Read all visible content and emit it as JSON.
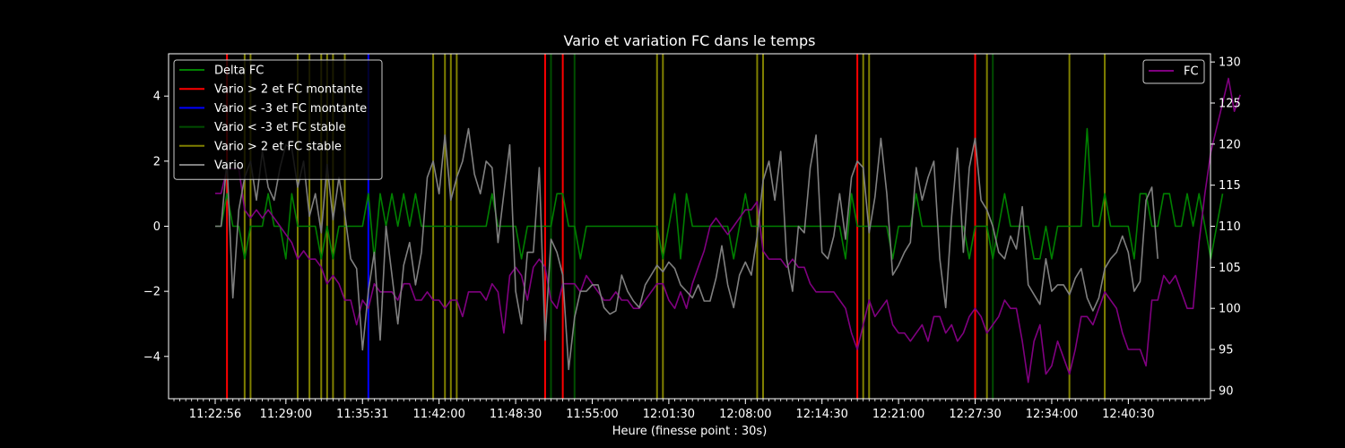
{
  "chart_data": {
    "type": "line",
    "title": "Vario et variation FC dans le temps",
    "xlabel": "Heure (finesse point : 30s)",
    "ylabel": "",
    "ylabel_right": "",
    "x_tick_labels": [
      "11:22:56",
      "11:29:00",
      "11:35:31",
      "11:42:00",
      "11:48:30",
      "11:55:00",
      "12:01:30",
      "12:08:00",
      "12:14:30",
      "12:21:00",
      "12:27:30",
      "12:34:00",
      "12:40:30"
    ],
    "x_tick_index": [
      0,
      12,
      25,
      38,
      51,
      64,
      77,
      90,
      103,
      116,
      129,
      142,
      155
    ],
    "y_left_lim": [
      -5.3,
      5.3
    ],
    "y_left_ticks": [
      "-4",
      "-2",
      "0",
      "2",
      "4"
    ],
    "y_right_lim": [
      89,
      131
    ],
    "y_right_ticks": [
      "90",
      "95",
      "100",
      "105",
      "110",
      "115",
      "120",
      "125",
      "130"
    ],
    "legend_left": [
      {
        "label": "Delta FC",
        "color": "#008000"
      },
      {
        "label": "Vario > 2 et FC montante",
        "color": "#ff0000"
      },
      {
        "label": "Vario < -3 et FC montante",
        "color": "#0000ff"
      },
      {
        "label": "Vario < -3 et FC stable",
        "color": "#004d00"
      },
      {
        "label": "Vario > 2 et FC stable",
        "color": "#808000"
      },
      {
        "label": "Vario",
        "color": "#808080"
      }
    ],
    "legend_right": [
      {
        "label": "FC",
        "color": "#800080"
      }
    ],
    "vlines": {
      "red": [
        2,
        56,
        59,
        109,
        129
      ],
      "blue": [
        26
      ],
      "darkgreen": [
        57,
        61,
        132
      ],
      "olive": [
        5,
        6,
        14,
        16,
        18,
        19,
        20,
        22,
        37,
        39,
        40,
        41,
        75,
        76,
        92,
        93,
        110,
        111,
        131,
        145,
        151
      ]
    },
    "series": [
      {
        "name": "Delta FC",
        "axis": "left",
        "color": "#008000",
        "values": [
          0,
          0,
          1,
          0,
          0,
          -1,
          0,
          0,
          0,
          1,
          0,
          0,
          -1,
          1,
          0,
          0,
          0,
          0,
          -1,
          0,
          -1,
          0,
          0,
          0,
          0,
          0,
          1,
          -1,
          1,
          0,
          1,
          0,
          1,
          0,
          1,
          0,
          0,
          0,
          0,
          0,
          0,
          0,
          0,
          0,
          0,
          0,
          0,
          1,
          0,
          0,
          0,
          0,
          -1,
          0,
          0,
          0,
          0,
          0,
          1,
          1,
          0,
          0,
          -1,
          0,
          0,
          0,
          0,
          0,
          0,
          0,
          0,
          0,
          0,
          0,
          0,
          0,
          -1,
          0,
          1,
          -1,
          1,
          0,
          0,
          0,
          0,
          0,
          0,
          0,
          -1,
          0,
          1,
          0,
          0,
          0,
          0,
          0,
          0,
          0,
          0,
          0,
          0,
          0,
          0,
          0,
          0,
          0,
          0,
          -1,
          1,
          0,
          0,
          0,
          0,
          0,
          0,
          -1,
          0,
          0,
          0,
          1,
          0,
          0,
          0,
          0,
          0,
          0,
          0,
          0,
          -1,
          0,
          0,
          0,
          -1,
          0,
          1,
          0,
          0,
          0,
          0,
          -1,
          -1,
          0,
          -1,
          0,
          0,
          0,
          0,
          0,
          3,
          0,
          0,
          1,
          0,
          0,
          0,
          0,
          -1,
          1,
          1,
          0,
          0,
          1,
          1,
          0,
          0,
          1,
          0,
          1,
          0,
          -1,
          0,
          1
        ],
        "values_note_unused": ""
      },
      {
        "name": "Vario",
        "axis": "left",
        "color": "#808080",
        "values": [
          0,
          0,
          2,
          -2.2,
          0.5,
          1.5,
          2,
          0.8,
          2.3,
          1.2,
          0.8,
          1.8,
          2.5,
          2.4,
          1.2,
          2,
          0.3,
          1,
          -0.2,
          1.9,
          0.2,
          1.5,
          0.4,
          -1,
          -1.3,
          -3.8,
          -2,
          -0.8,
          -3.5,
          0,
          -1.5,
          -3,
          -1.2,
          -0.5,
          -1.8,
          -0.8,
          1.5,
          2,
          1,
          2.8,
          0.8,
          1.5,
          2,
          3,
          1.6,
          1,
          2,
          1.8,
          -0.5,
          1,
          2.5,
          -2,
          -3,
          -0.8,
          -0.8,
          1.8,
          -3.5,
          -0.4,
          -0.8,
          -1.5,
          -4.4,
          -2.8,
          -2,
          -2,
          -1.8,
          -1.8,
          -2.5,
          -2.7,
          -2.6,
          -1.5,
          -2,
          -2.3,
          -2.5,
          -1.8,
          -1.5,
          -1.2,
          -1.4,
          -1.1,
          -1.3,
          -1.8,
          -2,
          -2.2,
          -1.8,
          -2.3,
          -2.3,
          -1.6,
          -0.6,
          -1.8,
          -2.5,
          -1.5,
          -1.1,
          -1.5,
          -0.3,
          1.4,
          2,
          0.8,
          2.3,
          -1,
          -2,
          0,
          -0.2,
          1.8,
          2.8,
          -0.8,
          -1,
          -0.3,
          1,
          -0.4,
          1.5,
          2,
          1.8,
          -0.2,
          0.9,
          2.7,
          1,
          -1.5,
          -1.2,
          -0.8,
          -0.5,
          1.8,
          0.8,
          1.5,
          2,
          -1,
          -2.5,
          0.3,
          2.4,
          -0.8,
          1.8,
          2.7,
          0.8,
          0.5,
          0,
          -0.8,
          -1,
          -0.3,
          -0.7,
          0.6,
          -1.8,
          -2.1,
          -2.4,
          -1,
          -2,
          -1.8,
          -1.8,
          -2.1,
          -1.6,
          -1.3,
          -2.2,
          -2.6,
          -2.2,
          -1.3,
          -1,
          -0.8,
          -0.3,
          -0.8,
          -2,
          -1.7,
          0.8,
          1.2,
          -1
        ],
        "values_note_unused": ""
      },
      {
        "name": "FC",
        "axis": "right",
        "color": "#800080",
        "values": [
          114,
          114,
          117,
          117,
          117,
          112,
          111,
          112,
          111,
          112,
          111,
          110,
          109,
          108,
          106,
          107,
          106,
          106,
          105,
          103,
          104,
          103,
          101,
          101,
          98,
          101,
          100,
          103,
          102,
          102,
          102,
          101,
          103,
          103,
          101,
          101,
          102,
          101,
          101,
          100,
          101,
          101,
          99,
          102,
          102,
          102,
          101,
          103,
          102,
          97,
          104,
          105,
          104,
          101,
          105,
          106,
          105,
          101,
          100,
          103,
          103,
          103,
          102,
          104,
          103,
          102,
          101,
          101,
          102,
          101,
          101,
          100,
          100,
          101,
          102,
          103,
          103,
          101,
          100,
          102,
          100,
          103,
          105,
          107,
          110,
          111,
          110,
          109,
          110,
          111,
          112,
          112,
          113,
          107,
          106,
          106,
          106,
          105,
          106,
          105,
          105,
          103,
          102,
          102,
          102,
          102,
          101,
          100,
          97,
          95,
          98,
          101,
          99,
          100,
          101,
          98,
          97,
          97,
          96,
          97,
          98,
          96,
          99,
          99,
          97,
          98,
          96,
          97,
          99,
          100,
          99,
          97,
          98,
          99,
          101,
          100,
          100,
          96,
          91,
          96,
          98,
          92,
          93,
          96,
          94,
          92,
          95,
          99,
          99,
          98,
          100,
          102,
          101,
          100,
          97,
          95,
          95,
          95,
          93,
          101,
          101,
          104,
          103,
          104,
          102,
          100,
          100,
          108,
          114,
          119,
          122,
          125,
          128,
          124,
          126
        ],
        "values_note_unused": ""
      }
    ]
  }
}
